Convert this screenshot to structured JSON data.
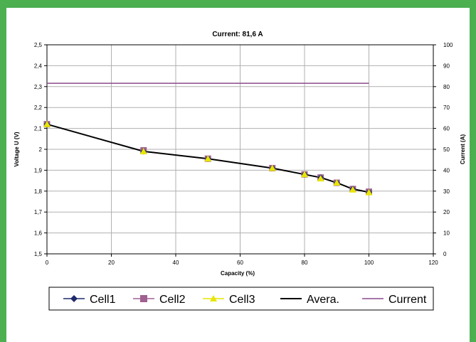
{
  "colors": {
    "border": "#4caf50",
    "background": "#ffffff",
    "grid": "#b0b0b0",
    "cell1": "#1f2a6b",
    "cell2": "#a06090",
    "cell3": "#e6e600",
    "average": "#000000",
    "current": "#8b4a8c"
  },
  "chart_data": {
    "type": "line",
    "title": "Current: 81,6 A",
    "xlabel": "Capacity (%)",
    "ylabel": "Voltage U (V)",
    "y2label": "Current (A)",
    "xlim": [
      0,
      120
    ],
    "ylim": [
      1.5,
      2.5
    ],
    "y2lim": [
      0,
      100
    ],
    "x_ticks": [
      "0",
      "20",
      "40",
      "60",
      "80",
      "100",
      "120"
    ],
    "y_ticks": [
      "1,5",
      "1,6",
      "1,7",
      "1,8",
      "1,9",
      "2",
      "2,1",
      "2,2",
      "2,3",
      "2,4",
      "2,5"
    ],
    "y2_ticks": [
      "0",
      "10",
      "20",
      "30",
      "40",
      "50",
      "60",
      "70",
      "80",
      "90",
      "100"
    ],
    "grid": true,
    "legend_position": "bottom",
    "series": [
      {
        "name": "Cell1",
        "axis": "left",
        "marker": "diamond",
        "x": [
          0,
          30,
          50,
          70,
          80,
          85,
          90,
          95,
          100
        ],
        "y": [
          2.12,
          1.99,
          1.955,
          1.91,
          1.88,
          1.865,
          1.84,
          1.81,
          1.795
        ]
      },
      {
        "name": "Cell2",
        "axis": "left",
        "marker": "square",
        "x": [
          0,
          30,
          50,
          70,
          80,
          85,
          90,
          95,
          100
        ],
        "y": [
          2.12,
          1.995,
          1.955,
          1.91,
          1.88,
          1.865,
          1.84,
          1.81,
          1.797
        ]
      },
      {
        "name": "Cell3",
        "axis": "left",
        "marker": "triangle",
        "x": [
          0,
          30,
          50,
          70,
          80,
          85,
          90,
          95,
          100
        ],
        "y": [
          2.12,
          1.99,
          1.955,
          1.91,
          1.88,
          1.86,
          1.84,
          1.807,
          1.794
        ]
      },
      {
        "name": "Avera.",
        "axis": "left",
        "marker": "none",
        "x": [
          0,
          30,
          50,
          70,
          80,
          85,
          90,
          95,
          100
        ],
        "y": [
          2.12,
          1.99,
          1.955,
          1.91,
          1.88,
          1.865,
          1.84,
          1.81,
          1.795
        ]
      },
      {
        "name": "Current",
        "axis": "right",
        "marker": "none",
        "x": [
          0,
          100
        ],
        "y": [
          81.6,
          81.6
        ]
      }
    ]
  }
}
